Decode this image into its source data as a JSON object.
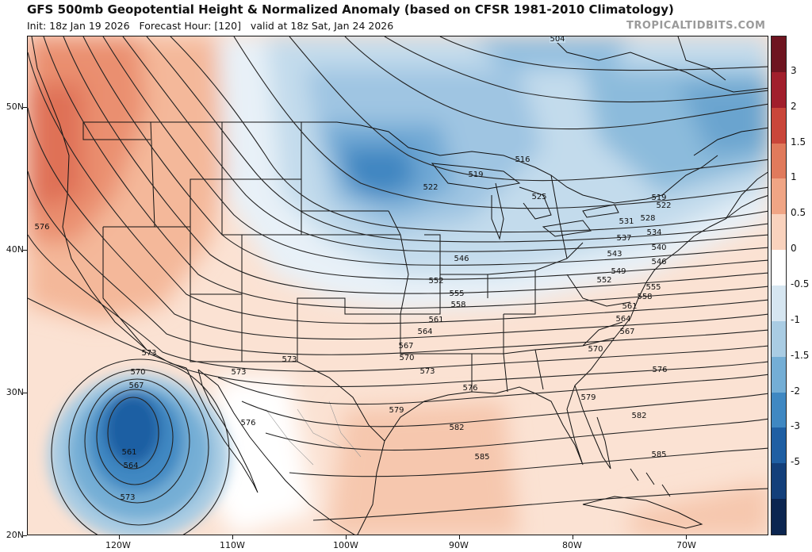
{
  "header": {
    "title": "GFS 500mb Geopotential Height & Normalized Anomaly (based on CFSR 1981-2010 Climatology)",
    "init_line": "Init: 18z Jan 19 2026   Forecast Hour: [120]   valid at 18z Sat, Jan 24 2026",
    "brand": "TROPICALTIDBITS.COM"
  },
  "axes": {
    "latitudes": [
      "50N",
      "40N",
      "30N",
      "20N"
    ],
    "longitudes": [
      "120W",
      "110W",
      "100W",
      "90W",
      "80W",
      "70W"
    ]
  },
  "colorbar": {
    "labels": [
      "3",
      "2",
      "1.5",
      "1",
      "0.5",
      "0",
      "-0.5",
      "-1",
      "-1.5",
      "-2",
      "-3",
      "-5"
    ],
    "colors": [
      "#6e1420",
      "#a11f2c",
      "#c9463a",
      "#e07a5c",
      "#f0a585",
      "#f9d2bd",
      "#ffffff",
      "#d6e6f1",
      "#a9cce3",
      "#74aed5",
      "#3f88c2",
      "#1f5fa3",
      "#133f7a",
      "#0b2550"
    ]
  },
  "contour_labels": [
    {
      "text": "504"
    },
    {
      "text": "516"
    },
    {
      "text": "519"
    },
    {
      "text": "522"
    },
    {
      "text": "525"
    },
    {
      "text": "519"
    },
    {
      "text": "522"
    },
    {
      "text": "528"
    },
    {
      "text": "531"
    },
    {
      "text": "534"
    },
    {
      "text": "537"
    },
    {
      "text": "540"
    },
    {
      "text": "543"
    },
    {
      "text": "546"
    },
    {
      "text": "546"
    },
    {
      "text": "549"
    },
    {
      "text": "552"
    },
    {
      "text": "552"
    },
    {
      "text": "555"
    },
    {
      "text": "555"
    },
    {
      "text": "558"
    },
    {
      "text": "558"
    },
    {
      "text": "561"
    },
    {
      "text": "561"
    },
    {
      "text": "564"
    },
    {
      "text": "564"
    },
    {
      "text": "567"
    },
    {
      "text": "567"
    },
    {
      "text": "570"
    },
    {
      "text": "570"
    },
    {
      "text": "573"
    },
    {
      "text": "573"
    },
    {
      "text": "573"
    },
    {
      "text": "576"
    },
    {
      "text": "576"
    },
    {
      "text": "576"
    },
    {
      "text": "576"
    },
    {
      "text": "579"
    },
    {
      "text": "579"
    },
    {
      "text": "582"
    },
    {
      "text": "582"
    },
    {
      "text": "585"
    },
    {
      "text": "585"
    },
    {
      "text": "570"
    },
    {
      "text": "567"
    },
    {
      "text": "561"
    },
    {
      "text": "564"
    },
    {
      "text": "573"
    },
    {
      "text": "573"
    }
  ]
}
